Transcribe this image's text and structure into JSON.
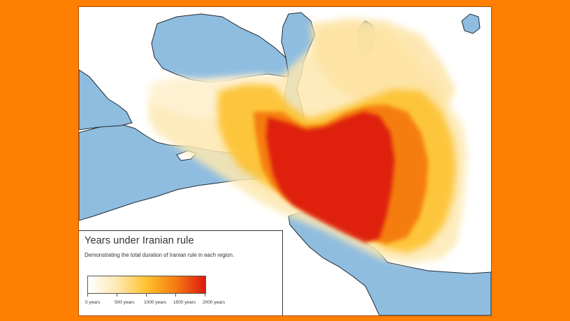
{
  "legend": {
    "title": "Years under Iranian rule",
    "subtitle": "Demonstrating the total duration of Iranian rule in each region.",
    "scale": {
      "min_label": "0 years",
      "labels": [
        "0 years",
        "500 years",
        "1000 years",
        "1500 years",
        "2000 years"
      ],
      "values": [
        0,
        500,
        1000,
        1500,
        2000
      ],
      "colors": [
        "#ffffff",
        "#fde8b0",
        "#fdc12e",
        "#f57a10",
        "#dd1a10"
      ]
    }
  },
  "colors": {
    "background": "#FF7F00",
    "water": "#8fbde0",
    "coast": "#1e2a35"
  }
}
